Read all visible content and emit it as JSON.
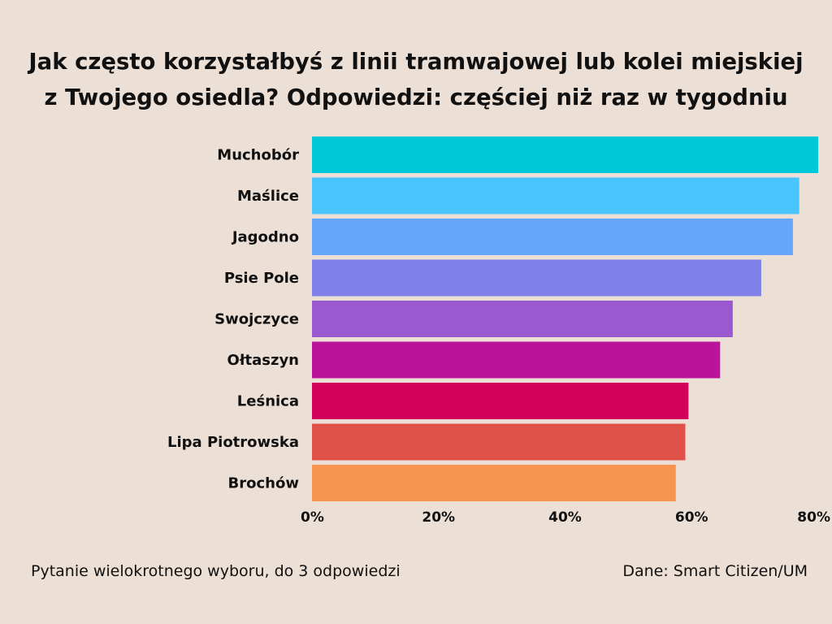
{
  "chart_data": {
    "type": "bar",
    "orientation": "horizontal",
    "title": "Jak często korzystałbyś z linii tramwajowej lub kolei miejskiej z Twojego osiedla? Odpowiedzi: częściej niż raz w tygodniu",
    "title_lines": [
      "Jak często korzystałbyś z linii tramwajowej lub kolei miejskiej",
      "z Twojego osiedla? Odpowiedzi: częściej niż raz w tygodniu"
    ],
    "categories": [
      "Muchobór",
      "Maślice",
      "Jagodno",
      "Psie Pole",
      "Swojczyce",
      "Ołtaszyn",
      "Leśnica",
      "Lipa Piotrowska",
      "Brochów"
    ],
    "values": [
      80,
      77,
      76,
      71,
      66.5,
      64.5,
      59.5,
      59,
      57.5
    ],
    "colors": [
      "#00c8d8",
      "#4ac4fc",
      "#66a6fa",
      "#7f80e8",
      "#9b59d0",
      "#bb139c",
      "#d10059",
      "#e0514a",
      "#f79452"
    ],
    "xlim": [
      0,
      80
    ],
    "xticks": [
      0,
      20,
      40,
      60,
      80
    ],
    "xtick_labels": [
      "0%",
      "20%",
      "40%",
      "60%",
      "80%"
    ],
    "xlabel": "",
    "ylabel": "",
    "grid": false
  },
  "footer": {
    "note": "Pytanie wielokrotnego wyboru, do 3 odpowiedzi",
    "source": "Dane: Smart Citizen/UM"
  }
}
